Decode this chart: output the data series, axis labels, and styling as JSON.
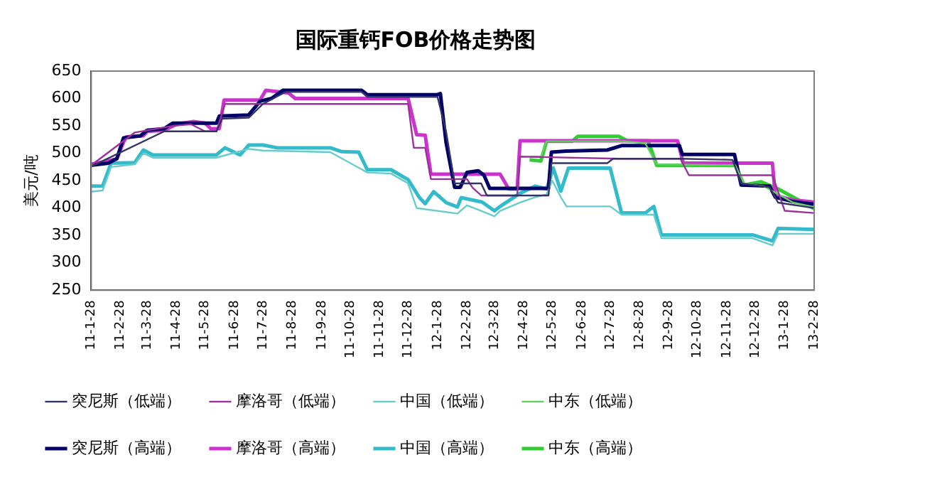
{
  "chart_data": {
    "type": "line",
    "title": "国际重钙FOB价格走势图",
    "ylabel": "美元/吨",
    "xlim": [
      "2011-01-28",
      "2013-02-28"
    ],
    "xticks": [
      {
        "value": "2011-01-28",
        "label": "11-1-28"
      },
      {
        "value": "2011-02-28",
        "label": "11-2-28"
      },
      {
        "value": "2011-03-28",
        "label": "11-3-28"
      },
      {
        "value": "2011-04-28",
        "label": "11-4-28"
      },
      {
        "value": "2011-05-28",
        "label": "11-5-28"
      },
      {
        "value": "2011-06-28",
        "label": "11-6-28"
      },
      {
        "value": "2011-07-28",
        "label": "11-7-28"
      },
      {
        "value": "2011-08-28",
        "label": "11-8-28"
      },
      {
        "value": "2011-09-28",
        "label": "11-9-28"
      },
      {
        "value": "2011-10-28",
        "label": "11-10-28"
      },
      {
        "value": "2011-11-28",
        "label": "11-11-28"
      },
      {
        "value": "2011-12-28",
        "label": "11-12-28"
      },
      {
        "value": "2012-01-28",
        "label": "12-1-28"
      },
      {
        "value": "2012-02-28",
        "label": "12-2-28"
      },
      {
        "value": "2012-03-28",
        "label": "12-3-28"
      },
      {
        "value": "2012-04-28",
        "label": "12-4-28"
      },
      {
        "value": "2012-05-28",
        "label": "12-5-28"
      },
      {
        "value": "2012-06-28",
        "label": "12-6-28"
      },
      {
        "value": "2012-07-28",
        "label": "12-7-28"
      },
      {
        "value": "2012-08-28",
        "label": "12-8-28"
      },
      {
        "value": "2012-09-28",
        "label": "12-9-28"
      },
      {
        "value": "2012-10-28",
        "label": "12-10-28"
      },
      {
        "value": "2012-11-28",
        "label": "12-11-28"
      },
      {
        "value": "2012-12-28",
        "label": "12-12-28"
      },
      {
        "value": "2013-01-28",
        "label": "13-1-28"
      },
      {
        "value": "2013-02-28",
        "label": "13-2-28"
      }
    ],
    "ylim": [
      250,
      650
    ],
    "yticks": [
      250,
      300,
      350,
      400,
      450,
      500,
      550,
      600,
      650
    ],
    "grid": false,
    "legend": "bottom",
    "marker": "none",
    "line_style": "solid",
    "series": [
      {
        "name": "突尼斯（高端）",
        "color": "#000066",
        "x": [
          "2011-01-28",
          "2011-02-15",
          "2011-02-24",
          "2011-03-03",
          "2011-03-21",
          "2011-03-28",
          "2011-04-15",
          "2011-04-24",
          "2011-06-09",
          "2011-06-12",
          "2011-07-13",
          "2011-07-25",
          "2011-08-06",
          "2011-08-18",
          "2011-11-09",
          "2011-11-15",
          "2012-01-28",
          "2012-01-31",
          "2012-02-06",
          "2012-02-15",
          "2012-02-21",
          "2012-02-28",
          "2012-03-11",
          "2012-03-17",
          "2012-03-23",
          "2012-05-24",
          "2012-05-27",
          "2012-06-12",
          "2012-07-25",
          "2012-08-09",
          "2012-10-09",
          "2012-10-12",
          "2012-12-06",
          "2012-12-13",
          "2013-01-12",
          "2013-01-18",
          "2013-02-05",
          "2013-02-28"
        ],
        "values": [
          478,
          482,
          490,
          528,
          532,
          542,
          545,
          555,
          555,
          568,
          570,
          595,
          600,
          615,
          615,
          607,
          607,
          609,
          520,
          438,
          438,
          465,
          468,
          460,
          436,
          436,
          502,
          504,
          506,
          514,
          514,
          498,
          498,
          442,
          440,
          420,
          412,
          407
        ]
      },
      {
        "name": "突尼斯（低端）",
        "color": "#333366",
        "x": [
          "2011-01-28",
          "2011-04-15",
          "2011-06-09",
          "2011-06-15",
          "2011-07-13",
          "2011-07-28",
          "2011-08-21",
          "2011-11-09",
          "2011-11-15",
          "2012-01-28",
          "2012-02-06",
          "2012-02-15",
          "2012-03-14",
          "2012-03-20",
          "2012-05-24",
          "2012-05-27",
          "2012-07-25",
          "2012-07-31",
          "2012-10-10",
          "2012-12-04",
          "2012-12-13",
          "2013-01-12",
          "2013-01-21",
          "2013-02-28"
        ],
        "values": [
          476,
          540,
          540,
          563,
          565,
          590,
          612,
          612,
          603,
          603,
          540,
          445,
          445,
          423,
          423,
          482,
          482,
          490,
          490,
          488,
          445,
          438,
          410,
          400
        ]
      },
      {
        "name": "摩洛哥（高端）",
        "color": "#cc33cc",
        "x": [
          "2011-01-28",
          "2011-02-12",
          "2011-02-24",
          "2011-03-03",
          "2011-03-06",
          "2011-03-24",
          "2011-03-28",
          "2011-04-15",
          "2011-04-28",
          "2011-05-16",
          "2011-05-28",
          "2011-06-03",
          "2011-06-12",
          "2011-06-17",
          "2011-07-25",
          "2011-07-31",
          "2011-08-24",
          "2011-08-31",
          "2011-12-28",
          "2012-01-06",
          "2012-01-15",
          "2012-01-21",
          "2012-04-03",
          "2012-04-12",
          "2012-04-21",
          "2012-04-24",
          "2012-10-07",
          "2012-10-13",
          "2013-01-15",
          "2013-01-18",
          "2013-02-05",
          "2013-02-28"
        ],
        "values": [
          480,
          485,
          490,
          520,
          530,
          532,
          540,
          542,
          553,
          558,
          555,
          545,
          545,
          597,
          597,
          615,
          610,
          600,
          600,
          534,
          533,
          462,
          462,
          435,
          435,
          523,
          523,
          482,
          482,
          423,
          415,
          411
        ]
      },
      {
        "name": "摩洛哥（低端）",
        "color": "#993399",
        "x": [
          "2011-01-28",
          "2011-03-15",
          "2011-04-24",
          "2011-05-13",
          "2011-05-28",
          "2011-06-09",
          "2011-06-18",
          "2011-12-28",
          "2012-01-03",
          "2012-01-15",
          "2012-01-21",
          "2012-02-28",
          "2012-03-05",
          "2012-03-14",
          "2012-04-21",
          "2012-04-24",
          "2012-08-06",
          "2012-10-10",
          "2012-10-19",
          "2013-01-15",
          "2013-01-28",
          "2013-02-28"
        ],
        "values": [
          478,
          538,
          550,
          553,
          540,
          540,
          590,
          590,
          510,
          510,
          453,
          453,
          437,
          423,
          423,
          494,
          490,
          490,
          460,
          460,
          395,
          391
        ]
      },
      {
        "name": "中国（高端）",
        "color": "#33bbcc",
        "x": [
          "2011-01-28",
          "2011-02-09",
          "2011-02-18",
          "2011-03-15",
          "2011-03-24",
          "2011-04-03",
          "2011-06-09",
          "2011-06-18",
          "2011-07-04",
          "2011-07-13",
          "2011-07-28",
          "2011-08-12",
          "2011-10-07",
          "2011-10-19",
          "2011-11-06",
          "2011-11-15",
          "2011-12-10",
          "2011-12-28",
          "2012-01-09",
          "2012-01-15",
          "2012-01-24",
          "2012-02-06",
          "2012-02-18",
          "2012-02-22",
          "2012-03-15",
          "2012-03-28",
          "2012-04-03",
          "2012-04-24",
          "2012-05-10",
          "2012-05-22",
          "2012-05-29",
          "2012-06-06",
          "2012-06-14",
          "2012-07-28",
          "2012-08-09",
          "2012-09-03",
          "2012-09-12",
          "2012-09-20",
          "2012-12-25",
          "2013-01-15",
          "2013-01-21",
          "2013-02-28"
        ],
        "values": [
          440,
          440,
          482,
          483,
          506,
          497,
          497,
          510,
          497,
          515,
          515,
          510,
          510,
          503,
          502,
          470,
          470,
          452,
          419,
          408,
          430,
          410,
          402,
          419,
          411,
          395,
          403,
          427,
          440,
          435,
          473,
          431,
          473,
          473,
          391,
          391,
          403,
          351,
          351,
          340,
          363,
          361
        ]
      },
      {
        "name": "中国（低端）",
        "color": "#66cccc",
        "x": [
          "2011-01-28",
          "2011-02-09",
          "2011-02-18",
          "2011-03-15",
          "2011-03-24",
          "2011-04-03",
          "2011-06-09",
          "2011-07-13",
          "2011-07-28",
          "2011-10-07",
          "2011-11-15",
          "2011-12-10",
          "2011-12-28",
          "2012-01-06",
          "2012-02-18",
          "2012-02-28",
          "2012-03-14",
          "2012-03-28",
          "2012-04-03",
          "2012-04-24",
          "2012-05-10",
          "2012-05-22",
          "2012-05-28",
          "2012-06-06",
          "2012-06-12",
          "2012-07-28",
          "2012-08-09",
          "2012-09-12",
          "2012-09-20",
          "2012-12-25",
          "2013-01-15",
          "2013-01-21",
          "2013-02-28"
        ],
        "values": [
          430,
          432,
          475,
          480,
          500,
          492,
          492,
          508,
          505,
          502,
          465,
          463,
          445,
          400,
          390,
          405,
          395,
          385,
          395,
          410,
          420,
          425,
          450,
          420,
          403,
          403,
          388,
          388,
          345,
          345,
          332,
          353,
          353
        ]
      },
      {
        "name": "中东（高端）",
        "color": "#33cc33",
        "x": [
          "2012-05-04",
          "2012-05-16",
          "2012-05-22",
          "2012-06-18",
          "2012-06-24",
          "2012-08-06",
          "2012-08-15",
          "2012-09-06",
          "2012-09-15",
          "2012-12-07",
          "2012-12-16",
          "2013-01-03",
          "2013-01-21",
          "2013-02-28"
        ],
        "values": [
          488,
          486,
          522,
          522,
          531,
          531,
          523,
          523,
          478,
          478,
          442,
          448,
          435,
          399
        ]
      },
      {
        "name": "中东（低端）",
        "color": "#66cc66",
        "x": [
          "2012-05-04",
          "2012-05-16",
          "2012-05-22",
          "2012-08-12",
          "2012-09-03",
          "2012-09-15",
          "2012-12-07",
          "2012-12-16",
          "2013-01-06",
          "2013-02-06",
          "2013-02-28"
        ],
        "values": [
          494,
          494,
          522,
          522,
          518,
          480,
          478,
          445,
          440,
          410,
          402
        ]
      }
    ]
  }
}
